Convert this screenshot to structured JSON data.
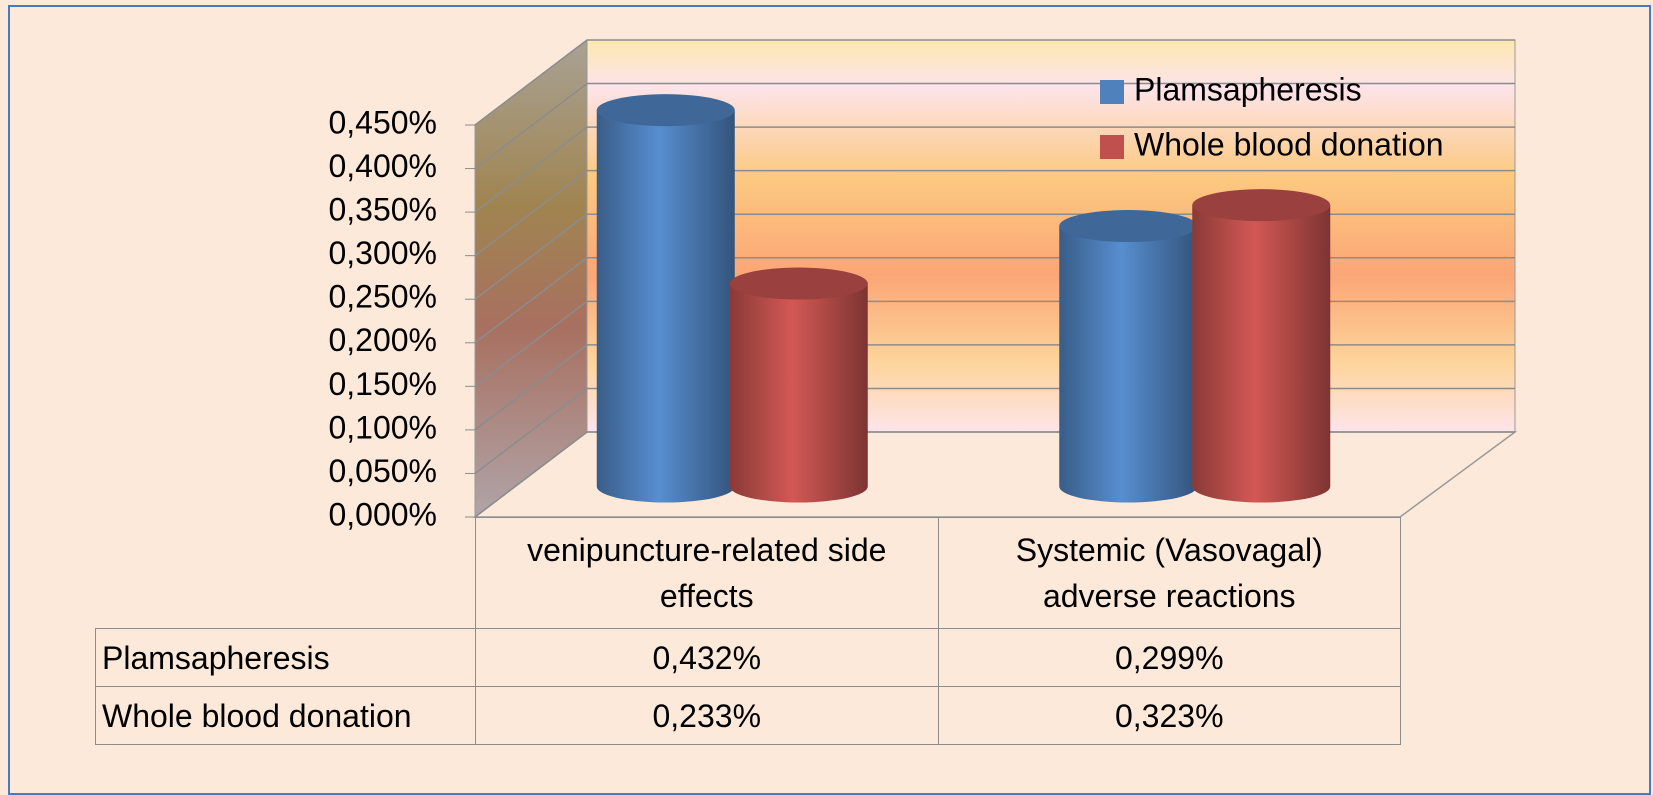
{
  "chart_data": {
    "type": "bar3d",
    "categories": [
      "venipuncture-related side effects",
      "Systemic (Vasovagal) adverse reactions"
    ],
    "series": [
      {
        "name": "Plamsapheresis",
        "color": "#4f81bd",
        "values": [
          0.432,
          0.299
        ],
        "value_labels": [
          "0,432%",
          "0,299%"
        ]
      },
      {
        "name": "Whole blood donation",
        "color": "#c0504d",
        "values": [
          0.233,
          0.323
        ],
        "value_labels": [
          "0,233%",
          "0,323%"
        ]
      }
    ],
    "ylim": [
      0,
      0.45
    ],
    "yticks": [
      {
        "value": 0,
        "label": "0,000%"
      },
      {
        "value": 0.05,
        "label": "0,050%"
      },
      {
        "value": 0.1,
        "label": "0,100%"
      },
      {
        "value": 0.15,
        "label": "0,150%"
      },
      {
        "value": 0.2,
        "label": "0,200%"
      },
      {
        "value": 0.25,
        "label": "0,250%"
      },
      {
        "value": 0.3,
        "label": "0,300%"
      },
      {
        "value": 0.35,
        "label": "0,350%"
      },
      {
        "value": 0.4,
        "label": "0,400%"
      },
      {
        "value": 0.45,
        "label": "0,450%"
      }
    ],
    "grid": true,
    "legend": "top-right",
    "data_table": true
  }
}
